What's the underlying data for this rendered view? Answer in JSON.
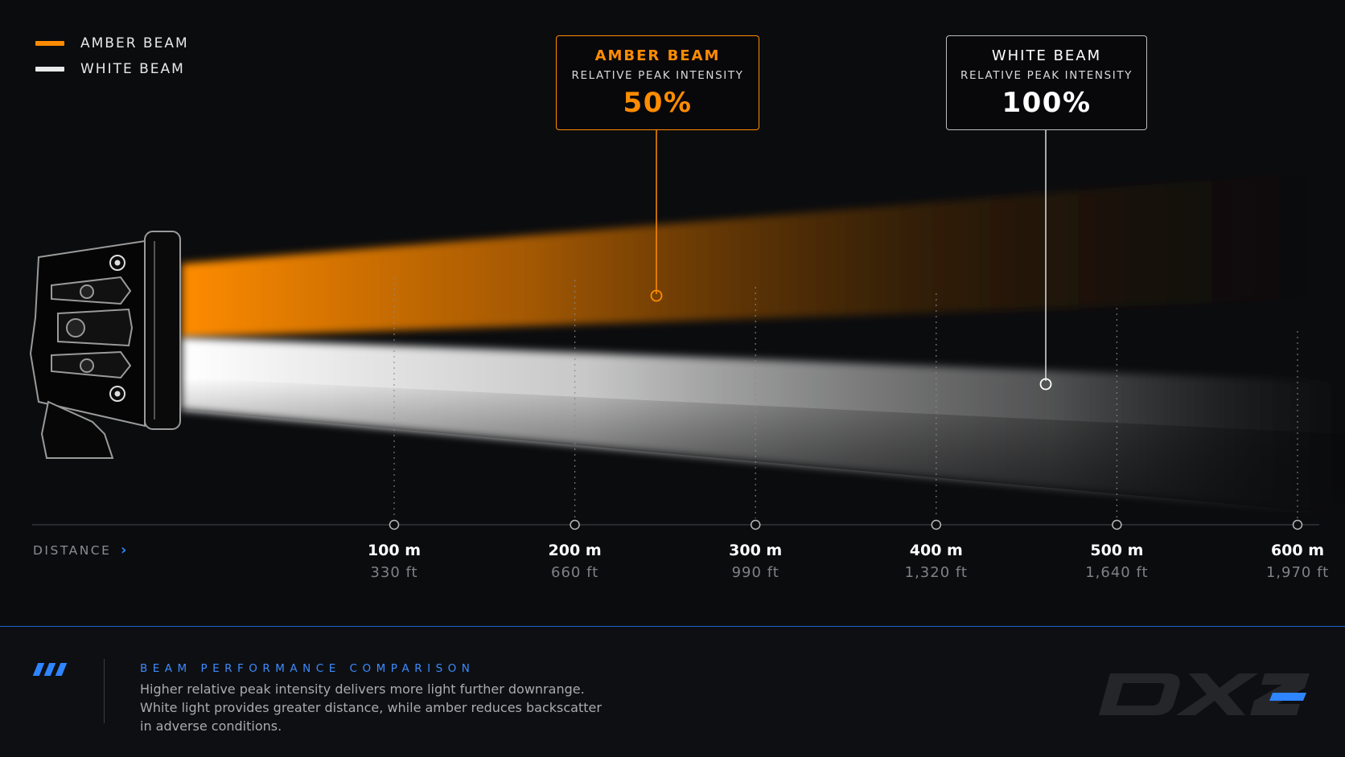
{
  "legend": [
    {
      "label": "AMBER BEAM",
      "color": "#ff8c00"
    },
    {
      "label": "WHITE BEAM",
      "color": "#e9e9e9"
    }
  ],
  "callouts": {
    "amber": {
      "title": "AMBER BEAM",
      "subtitle": "RELATIVE PEAK INTENSITY",
      "value": "50%",
      "color": "#ff8c00"
    },
    "white": {
      "title": "WHITE BEAM",
      "subtitle": "RELATIVE PEAK INTENSITY",
      "value": "100%",
      "color": "#ffffff"
    }
  },
  "chart_data": {
    "type": "area",
    "xlabel": "DISTANCE",
    "x": [
      100,
      200,
      300,
      400,
      500,
      600
    ],
    "tick_labels_m": [
      "100 m",
      "200 m",
      "300 m",
      "400 m",
      "500 m",
      "600 m"
    ],
    "tick_labels_ft": [
      "330 ft",
      "660 ft",
      "990 ft",
      "1,320 ft",
      "1,640 ft",
      "1,970 ft"
    ],
    "series": [
      {
        "name": "AMBER BEAM",
        "relative_peak_intensity": 50
      },
      {
        "name": "WHITE BEAM",
        "relative_peak_intensity": 100
      }
    ],
    "grid": true,
    "legend": "top-left"
  },
  "footer": {
    "title": "BEAM PERFORMANCE COMPARISON",
    "lines": [
      "Higher relative peak intensity delivers more light further downrange.",
      "White light provides greater distance, while amber reduces backscatter",
      "in adverse conditions."
    ],
    "brand": "DX2"
  },
  "colors": {
    "accent": "#2f84ff",
    "amber": "#ff8c00",
    "background": "#0b0c0e"
  }
}
